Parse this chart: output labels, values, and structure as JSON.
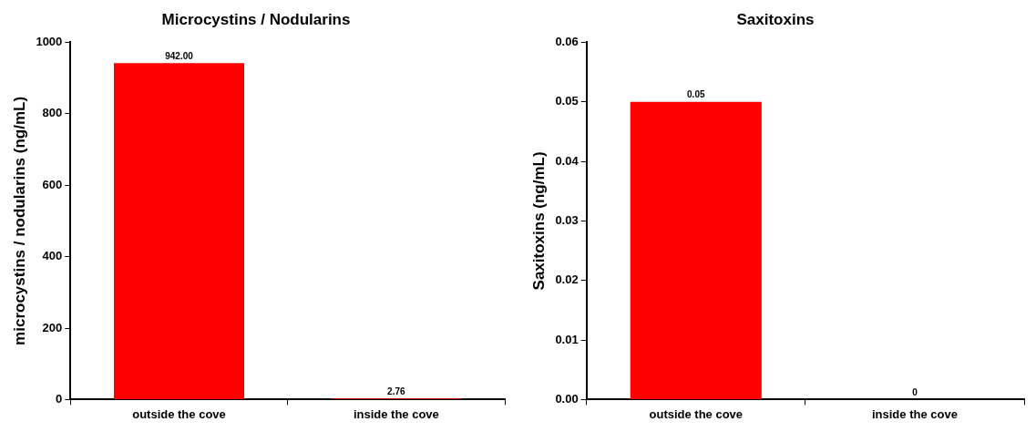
{
  "chart_data": [
    {
      "type": "bar",
      "title": "Microcystins / Nodularins",
      "ylabel": "microcystins / nodularins (ng/mL)",
      "categories": [
        "outside the cove",
        "inside the cove"
      ],
      "values": [
        942,
        2.76
      ],
      "color": "#ff0000",
      "value_labels": [
        "942.00",
        "2.76"
      ],
      "ylim": [
        0,
        1000
      ],
      "yticks": [
        0,
        200,
        400,
        600,
        800,
        1000
      ],
      "legend": false
    },
    {
      "type": "bar",
      "title": "Saxitoxins",
      "ylabel": "Saxitoxins (ng/mL)",
      "categories": [
        "outside the cove",
        "inside the cove"
      ],
      "values": [
        0.05,
        0
      ],
      "color": "#ff0000",
      "value_labels": [
        "0.05",
        "0"
      ],
      "ylim": [
        0,
        0.06
      ],
      "yticks": [
        {
          "value": 0,
          "label": "0.00"
        },
        {
          "value": 0.01,
          "label": "0.01"
        },
        {
          "value": 0.02,
          "label": "0.02"
        },
        {
          "value": 0.03,
          "label": "0.03"
        },
        {
          "value": 0.04,
          "label": "0.04"
        },
        {
          "value": 0.05,
          "label": "0.05"
        },
        {
          "value": 0.06,
          "label": "0.06"
        }
      ],
      "legend": false
    }
  ]
}
